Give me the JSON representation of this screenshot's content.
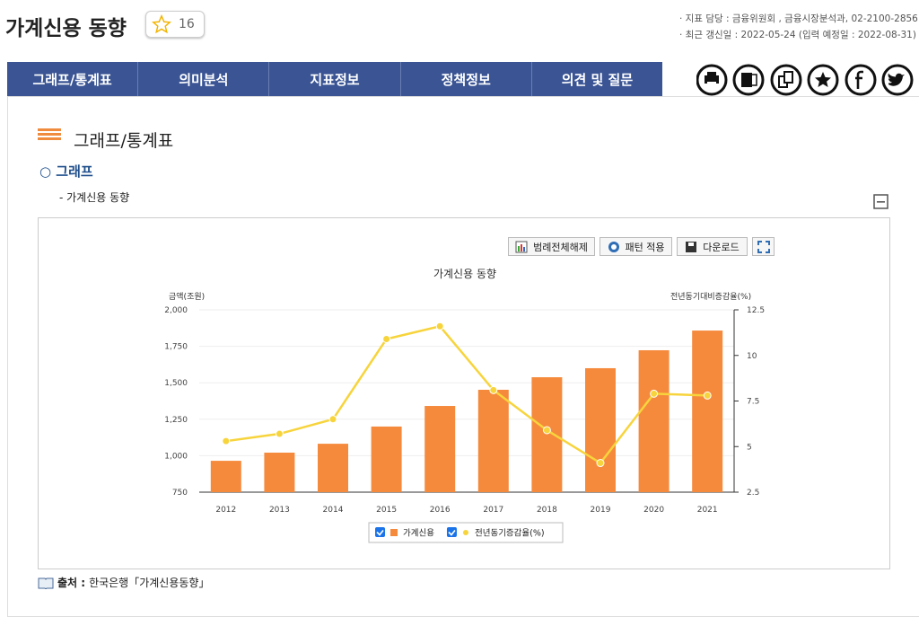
{
  "header": {
    "title": "가계신용 동향",
    "favorites": 16,
    "info": [
      "· 지표 담당 : 금융위원회 , 금융시장분석과, 02-2100-2856",
      "· 최근 갱신일 : 2022-05-24 (입력 예정일 : 2022-08-31)"
    ]
  },
  "nav": [
    "그래프/통계표",
    "의미분석",
    "지표정보",
    "정책정보",
    "의견 및 질문"
  ],
  "section": {
    "heading": "그래프/통계표",
    "subheading": "○ 그래프",
    "item": "- 가계신용 동향"
  },
  "chart_toolbar": [
    "범례전체해제",
    "패턴 적용",
    "다운로드"
  ],
  "chart_data": {
    "type": "combo",
    "title": "가계신용 동향",
    "ylabel": "금액(조원)",
    "y2label": "전년동기대비증감율(%)",
    "categories": [
      "2012",
      "2013",
      "2014",
      "2015",
      "2016",
      "2017",
      "2018",
      "2019",
      "2020",
      "2021"
    ],
    "series": [
      {
        "name": "가계신용",
        "type": "bar",
        "color": "#f58a3d",
        "values": [
          965,
          1021,
          1082,
          1200,
          1341,
          1452,
          1538,
          1600,
          1723,
          1858
        ]
      },
      {
        "name": "전년동기증감율(%)",
        "type": "line",
        "axis": "y2",
        "color": "#f7d43c",
        "values": [
          5.3,
          5.7,
          6.5,
          10.9,
          11.6,
          8.1,
          5.9,
          4.1,
          7.9,
          7.8
        ]
      }
    ],
    "ylim": [
      750,
      2000
    ],
    "yticks": [
      {
        "value": 750,
        "label": "750"
      },
      {
        "value": 1000,
        "label": "1,000"
      },
      {
        "value": 1250,
        "label": "1,250"
      },
      {
        "value": 1500,
        "label": "1,500"
      },
      {
        "value": 1750,
        "label": "1,750"
      },
      {
        "value": 2000,
        "label": "2,000"
      }
    ],
    "y2lim": [
      2.5,
      12.5
    ],
    "y2ticks": [
      2.5,
      5,
      7.5,
      10,
      12.5
    ],
    "grid": true
  },
  "source": {
    "label": "출처 :",
    "text": "한국은행「가계신용동향」"
  }
}
